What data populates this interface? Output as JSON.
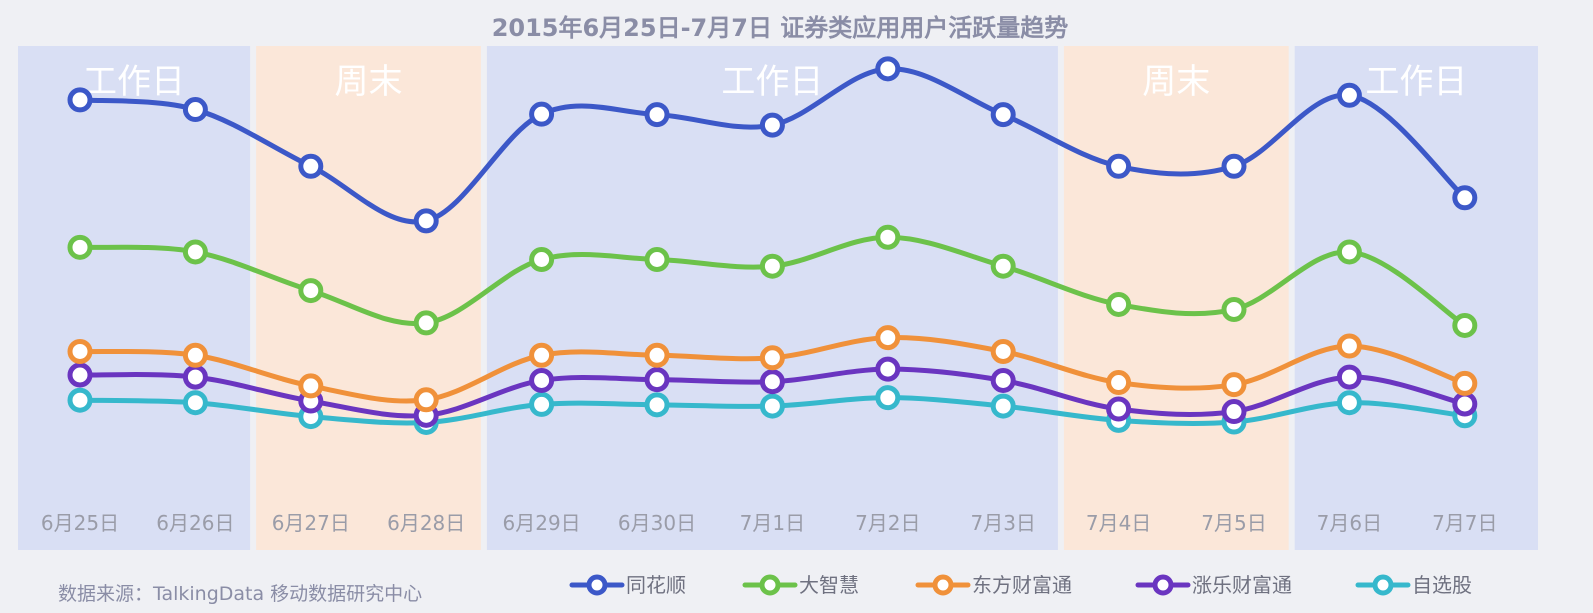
{
  "chart_data": {
    "type": "line",
    "title": "2015年6月25日-7月7日  证券类应用用户活跃量趋势",
    "categories": [
      "6月25日",
      "6月26日",
      "6月27日",
      "6月28日",
      "6月29日",
      "6月30日",
      "7月1日",
      "7月2日",
      "7月3日",
      "7月4日",
      "7月5日",
      "7月6日",
      "7月7日"
    ],
    "ylim": [
      0,
      100
    ],
    "grid": false,
    "legend_position": "bottom",
    "bands": [
      {
        "label": "工作日",
        "kind": "workday",
        "from": 0,
        "to": 1
      },
      {
        "label": "周末",
        "kind": "weekend",
        "from": 2,
        "to": 3
      },
      {
        "label": "工作日",
        "kind": "workday",
        "from": 4,
        "to": 8
      },
      {
        "label": "周末",
        "kind": "weekend",
        "from": 9,
        "to": 10
      },
      {
        "label": "工作日",
        "kind": "workday",
        "from": 11,
        "to": 12
      }
    ],
    "series": [
      {
        "name": "同花顺",
        "color": "#3c58c8",
        "values": [
          90.5,
          88.2,
          74.7,
          61.7,
          87.1,
          87.0,
          84.5,
          97.9,
          87.0,
          74.7,
          74.7,
          91.6,
          67.2
        ]
      },
      {
        "name": "大智慧",
        "color": "#6cc24a",
        "values": [
          55.4,
          54.3,
          45.1,
          37.4,
          52.5,
          52.5,
          50.9,
          57.8,
          50.9,
          41.8,
          40.6,
          54.3,
          36.8
        ]
      },
      {
        "name": "东方财富通",
        "color": "#f0913a",
        "values": [
          30.6,
          29.7,
          22.4,
          19.1,
          29.7,
          29.7,
          29.1,
          33.9,
          30.6,
          23.2,
          22.7,
          31.9,
          23.0
        ]
      },
      {
        "name": "涨乐财富通",
        "color": "#6a35c0",
        "values": [
          25.0,
          24.5,
          18.8,
          15.4,
          23.7,
          23.9,
          23.4,
          26.4,
          23.7,
          16.9,
          16.3,
          24.5,
          18.1
        ]
      },
      {
        "name": "自选股",
        "color": "#36b8cc",
        "values": [
          19.0,
          18.4,
          15.1,
          13.7,
          18.0,
          17.9,
          17.6,
          19.6,
          17.6,
          14.2,
          13.8,
          18.4,
          15.3
        ]
      }
    ]
  },
  "source_text": "数据来源：TalkingData 移动数据研究中心",
  "colors": {
    "background": "#eff0f4",
    "workday_band": "#d9dff4",
    "weekend_band": "#fbe7d9"
  }
}
